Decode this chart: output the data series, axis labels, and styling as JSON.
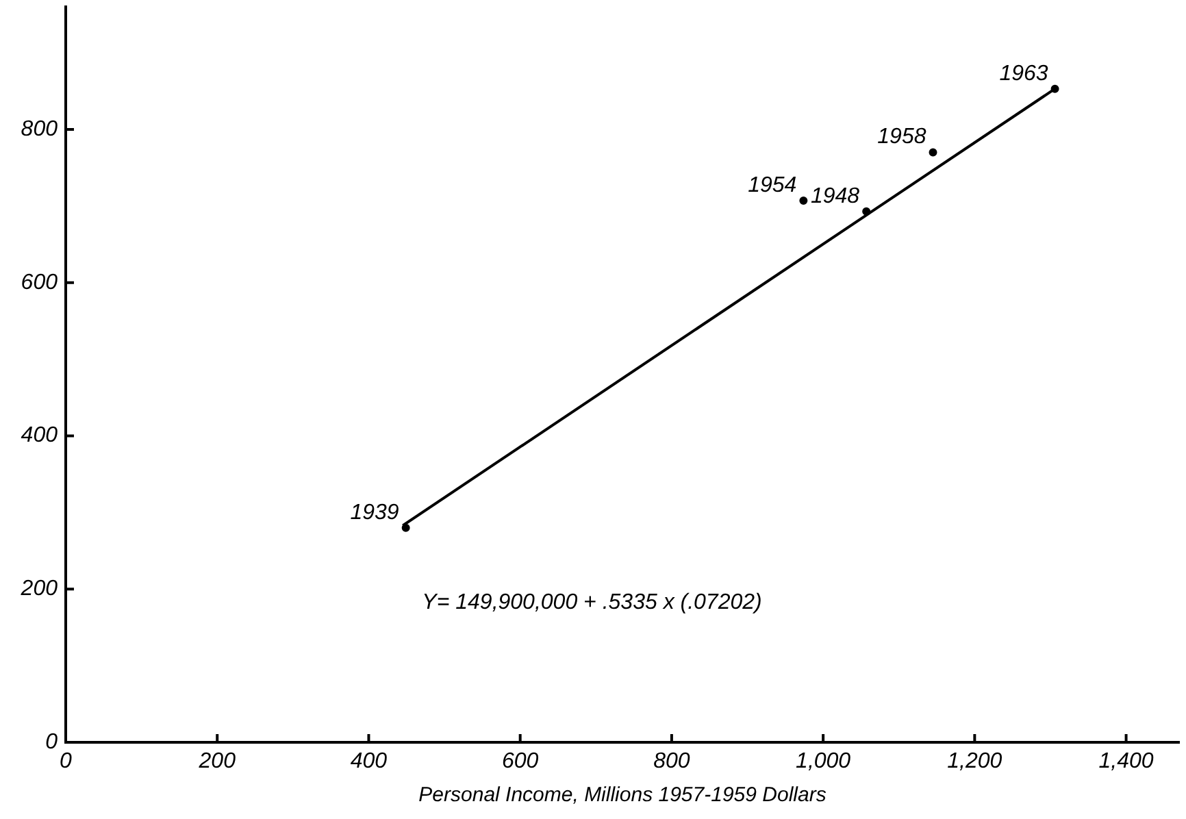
{
  "chart_data": {
    "type": "scatter",
    "xlabel": "Personal Income, Millions 1957-1959 Dollars",
    "xlim": [
      0,
      1470
    ],
    "ylim": [
      0,
      960
    ],
    "xticks": [
      0,
      200,
      400,
      600,
      800,
      {
        "value": 1000,
        "label": "1,000"
      },
      {
        "value": 1200,
        "label": "1,200"
      },
      {
        "value": 1400,
        "label": "1,400"
      }
    ],
    "yticks": [
      0,
      200,
      400,
      600,
      800
    ],
    "grid": false,
    "legend": false,
    "marker": "circle",
    "series": [
      {
        "color": "#000000",
        "x": [
          449,
          1057,
          974,
          1145,
          1306
        ],
        "values": [
          280,
          693,
          707,
          770,
          853
        ]
      },
      {
        "type": "line",
        "color": "#000000",
        "line_style": "solid",
        "marker": "none",
        "x": [
          445,
          1303
        ],
        "values": [
          283,
          851
        ]
      }
    ],
    "annotations": [
      {
        "text": "1939",
        "x": 449,
        "y": 280
      },
      {
        "text": "1948",
        "x": 1057,
        "y": 693
      },
      {
        "text": "1954",
        "x": 974,
        "y": 707
      },
      {
        "text": "1958",
        "x": 1145,
        "y": 770
      },
      {
        "text": "1963",
        "x": 1306,
        "y": 853
      },
      "Y= 149,900,000 + .5335 x (.07202)"
    ]
  }
}
